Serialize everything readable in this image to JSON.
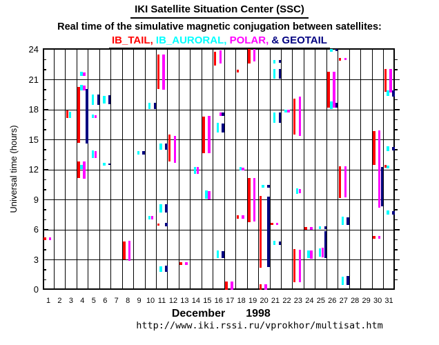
{
  "header": {
    "title": "IKI Satellite Situation Center (SSC)",
    "subtitle": "Real time of the simulative magnetic conjugation between satellites:",
    "legend_separator": ", ",
    "legend_amp": "& "
  },
  "y_axis": {
    "title": "Universal time (hours)",
    "tick_labels": [
      "0",
      "3",
      "6",
      "9",
      "12",
      "15",
      "18",
      "21",
      "24"
    ],
    "range_hours": [
      0,
      24.14
    ]
  },
  "x_axis": {
    "day_labels": [
      "1",
      "2",
      "3",
      "4",
      "5",
      "6",
      "7",
      "8",
      "9",
      "10",
      "11",
      "12",
      "13",
      "14",
      "15",
      "16",
      "17",
      "18",
      "19",
      "20",
      "21",
      "22",
      "23",
      "24",
      "25",
      "26",
      "27",
      "28",
      "29",
      "30",
      "31"
    ],
    "month": "December",
    "year": "1998"
  },
  "footer": {
    "url": "http://www.iki.rssi.ru/vprokhor/multisat.htm"
  },
  "colors": {
    "ib_tail": "#ff0000",
    "ib_auroral": "#00ffff",
    "polar": "#ff00ff",
    "geotail": "#000080",
    "axis": "#000000"
  },
  "chart_data": {
    "type": "bar",
    "subtype": "daily-time-span-gantt",
    "title": "Real time of the simulative magnetic conjugation between satellites",
    "xlabel": "December 1998 (day of month)",
    "ylabel": "Universal time (hours)",
    "ylim": [
      0,
      24
    ],
    "categories_days": [
      1,
      2,
      3,
      4,
      5,
      6,
      7,
      8,
      9,
      10,
      11,
      12,
      13,
      14,
      15,
      16,
      17,
      18,
      19,
      20,
      21,
      22,
      23,
      24,
      25,
      26,
      27,
      28,
      29,
      30,
      31
    ],
    "grid": true,
    "legend_position": "top",
    "series": [
      {
        "name": "IB_TAIL",
        "color": "#ff0000",
        "segments": [
          [
            1,
            5.0,
            5.25
          ],
          [
            3,
            17.2,
            17.9
          ],
          [
            4,
            14.7,
            20.25
          ],
          [
            4,
            11.2,
            12.8
          ],
          [
            8,
            3.0,
            4.8
          ],
          [
            11,
            20.1,
            23.5
          ],
          [
            11,
            6.4,
            6.6
          ],
          [
            12,
            12.8,
            15.5
          ],
          [
            13,
            2.5,
            2.75
          ],
          [
            15,
            13.65,
            17.3
          ],
          [
            16,
            22.4,
            23.8
          ],
          [
            17,
            0.0,
            0.8
          ],
          [
            18,
            21.7,
            22.0
          ],
          [
            18,
            7.1,
            7.45
          ],
          [
            19,
            22.65,
            24.05
          ],
          [
            19,
            6.75,
            11.2
          ],
          [
            20,
            2.2,
            9.35
          ],
          [
            20,
            0.0,
            0.55
          ],
          [
            21,
            6.45,
            6.7
          ],
          [
            23,
            15.5,
            19.1
          ],
          [
            23,
            0.75,
            4.05
          ],
          [
            24,
            6.0,
            6.3
          ],
          [
            26,
            18.2,
            21.8
          ],
          [
            27,
            22.9,
            23.2
          ],
          [
            27,
            9.15,
            12.35
          ],
          [
            30,
            12.45,
            15.85
          ],
          [
            30,
            5.1,
            5.35
          ],
          [
            31,
            19.8,
            22.1
          ],
          [
            31,
            12.2,
            12.45
          ]
        ]
      },
      {
        "name": "IB_AURORAL",
        "color": "#00ffff",
        "segments": [
          [
            3,
            17.2,
            17.8
          ],
          [
            4,
            21.4,
            21.8
          ],
          [
            4,
            19.95,
            20.45
          ],
          [
            4,
            12.1,
            12.45
          ],
          [
            5,
            18.5,
            19.55
          ],
          [
            5,
            17.2,
            17.5
          ],
          [
            5,
            13.2,
            13.9
          ],
          [
            6,
            18.6,
            19.4
          ],
          [
            6,
            12.4,
            12.7
          ],
          [
            9,
            13.55,
            13.85
          ],
          [
            10,
            18.1,
            18.7
          ],
          [
            10,
            7.0,
            7.4
          ],
          [
            11,
            14.0,
            14.6
          ],
          [
            11,
            7.75,
            8.55
          ],
          [
            11,
            1.8,
            2.35
          ],
          [
            14,
            11.6,
            12.3
          ],
          [
            15,
            9.1,
            9.9
          ],
          [
            16,
            15.7,
            16.7
          ],
          [
            16,
            3.15,
            3.9
          ],
          [
            18,
            11.9,
            12.3
          ],
          [
            20,
            10.2,
            10.5
          ],
          [
            21,
            22.65,
            23.0
          ],
          [
            21,
            21.1,
            22.1
          ],
          [
            21,
            16.7,
            17.75
          ],
          [
            21,
            4.45,
            4.9
          ],
          [
            22,
            17.75,
            18.0
          ],
          [
            23,
            9.6,
            10.15
          ],
          [
            24,
            3.15,
            3.9
          ],
          [
            25,
            6.1,
            6.35
          ],
          [
            25,
            3.3,
            4.15
          ],
          [
            26,
            23.8,
            24.05
          ],
          [
            26,
            18.1,
            18.85
          ],
          [
            27,
            6.45,
            7.3
          ],
          [
            27,
            0.45,
            1.3
          ],
          [
            31,
            19.4,
            19.9
          ],
          [
            31,
            13.85,
            14.35
          ],
          [
            31,
            12.15,
            12.4
          ],
          [
            31,
            7.5,
            7.9
          ]
        ]
      },
      {
        "name": "POLAR",
        "color": "#ff00ff",
        "segments": [
          [
            1,
            5.0,
            5.25
          ],
          [
            4,
            21.4,
            21.7
          ],
          [
            4,
            19.95,
            20.4
          ],
          [
            4,
            11.1,
            12.8
          ],
          [
            5,
            17.2,
            17.45
          ],
          [
            5,
            13.2,
            13.85
          ],
          [
            8,
            2.9,
            4.9
          ],
          [
            10,
            7.0,
            7.4
          ],
          [
            11,
            20.0,
            23.5
          ],
          [
            12,
            12.7,
            15.4
          ],
          [
            13,
            2.5,
            2.75
          ],
          [
            14,
            11.6,
            12.3
          ],
          [
            15,
            13.65,
            17.4
          ],
          [
            15,
            9.05,
            9.85
          ],
          [
            16,
            22.6,
            23.9
          ],
          [
            16,
            17.4,
            17.7
          ],
          [
            17,
            0.0,
            0.8
          ],
          [
            18,
            11.9,
            12.2
          ],
          [
            18,
            7.1,
            7.45
          ],
          [
            19,
            22.85,
            24.1
          ],
          [
            19,
            6.85,
            11.2
          ],
          [
            20,
            0.0,
            0.55
          ],
          [
            21,
            6.45,
            6.7
          ],
          [
            22,
            17.75,
            18.0
          ],
          [
            23,
            15.4,
            19.3
          ],
          [
            23,
            9.65,
            10.1
          ],
          [
            23,
            0.75,
            4.0
          ],
          [
            24,
            6.0,
            6.3
          ],
          [
            24,
            3.1,
            3.95
          ],
          [
            25,
            3.25,
            4.2
          ],
          [
            26,
            18.2,
            21.8
          ],
          [
            27,
            22.95,
            23.2
          ],
          [
            27,
            9.25,
            12.35
          ],
          [
            30,
            12.3,
            15.9
          ],
          [
            30,
            8.2,
            12.3
          ],
          [
            30,
            5.1,
            5.35
          ],
          [
            31,
            19.7,
            22.1
          ]
        ]
      },
      {
        "name": "GEOTAIL",
        "color": "#000080",
        "segments": [
          [
            4,
            14.6,
            20.1
          ],
          [
            5,
            18.45,
            19.5
          ],
          [
            6,
            18.55,
            19.45
          ],
          [
            6,
            12.45,
            12.65
          ],
          [
            9,
            13.55,
            13.85
          ],
          [
            10,
            18.1,
            18.7
          ],
          [
            11,
            14.0,
            14.65
          ],
          [
            11,
            7.75,
            8.55
          ],
          [
            11,
            6.35,
            6.7
          ],
          [
            11,
            1.8,
            2.4
          ],
          [
            16,
            17.4,
            17.7
          ],
          [
            16,
            15.75,
            16.6
          ],
          [
            16,
            3.2,
            3.85
          ],
          [
            20,
            10.2,
            10.45
          ],
          [
            20,
            2.3,
            9.3
          ],
          [
            21,
            22.7,
            23.0
          ],
          [
            21,
            21.1,
            22.05
          ],
          [
            21,
            16.7,
            17.7
          ],
          [
            21,
            4.5,
            4.85
          ],
          [
            25,
            6.1,
            6.35
          ],
          [
            25,
            3.2,
            5.85
          ],
          [
            26,
            23.85,
            24.05
          ],
          [
            26,
            18.2,
            18.7
          ],
          [
            27,
            6.5,
            7.25
          ],
          [
            27,
            0.5,
            1.35
          ],
          [
            30,
            8.35,
            12.3
          ],
          [
            31,
            19.3,
            19.95
          ],
          [
            31,
            13.9,
            14.3
          ],
          [
            31,
            7.55,
            7.85
          ]
        ]
      }
    ]
  }
}
